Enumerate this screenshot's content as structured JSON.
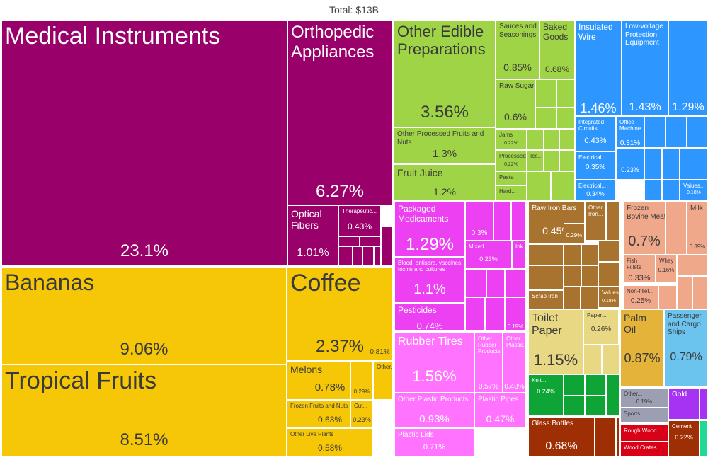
{
  "chart_data": {
    "type": "treemap",
    "title": "Total: $13B",
    "sector_colors": {
      "instruments": "#990069",
      "vegetables": "#F5C707",
      "foodstuffs": "#A0D447",
      "machines": "#2E97FF",
      "chemicals": "#ED40F2",
      "plastics": "#FF73FF",
      "metals": "#A8732E",
      "paper": "#E8D883",
      "textiles": "#0FA436",
      "animal_products": "#F0A88A",
      "transportation": "#6BC4EE",
      "animal_fats": "#E4B339",
      "misc": "#9C9FB1",
      "precious": "#A632F2",
      "wood": "#D80117",
      "stone": "#9E2F05",
      "footwear": "#1FD994"
    },
    "tiles": [
      {
        "label": "Medical Instruments",
        "value": "23.1%",
        "sector": "instruments"
      },
      {
        "label": "Orthopedic Appliances",
        "value": "6.27%",
        "sector": "instruments"
      },
      {
        "label": "Optical Fibers",
        "value": "1.01%",
        "sector": "instruments"
      },
      {
        "label": "Therapeutic...",
        "value": "0.43%",
        "sector": "instruments"
      },
      {
        "label": "Bananas",
        "value": "9.06%",
        "sector": "vegetables"
      },
      {
        "label": "Tropical Fruits",
        "value": "8.51%",
        "sector": "vegetables"
      },
      {
        "label": "Coffee",
        "value": "2.37%",
        "sector": "vegetables"
      },
      {
        "label": "Melons",
        "value": "0.78%",
        "sector": "vegetables"
      },
      {
        "label": "Frozen Fruits and Nuts",
        "value": "0.63%",
        "sector": "vegetables"
      },
      {
        "label": "Other Live Plants",
        "value": "0.58%",
        "sector": "vegetables"
      },
      {
        "label": "",
        "value": "0.81%",
        "sector": "vegetables"
      },
      {
        "label": "Other...",
        "value": "",
        "sector": "vegetables"
      },
      {
        "label": "",
        "value": "0.29%",
        "sector": "vegetables"
      },
      {
        "label": "Cut...",
        "value": "0.23%",
        "sector": "vegetables"
      },
      {
        "label": "Other Edible Preparations",
        "value": "3.56%",
        "sector": "foodstuffs"
      },
      {
        "label": "Sauces and Seasonings",
        "value": "0.85%",
        "sector": "foodstuffs"
      },
      {
        "label": "Baked Goods",
        "value": "0.68%",
        "sector": "foodstuffs"
      },
      {
        "label": "Raw Sugar",
        "value": "0.6%",
        "sector": "foodstuffs"
      },
      {
        "label": "Other Processed Fruits and Nuts",
        "value": "1.3%",
        "sector": "foodstuffs"
      },
      {
        "label": "Fruit Juice",
        "value": "1.2%",
        "sector": "foodstuffs"
      },
      {
        "label": "Jams",
        "value": "0.22%",
        "sector": "foodstuffs"
      },
      {
        "label": "Processed...",
        "value": "0.22%",
        "sector": "foodstuffs"
      },
      {
        "label": "Ice...",
        "value": "",
        "sector": "foodstuffs"
      },
      {
        "label": "Pasta",
        "value": "",
        "sector": "foodstuffs"
      },
      {
        "label": "Hard...",
        "value": "",
        "sector": "foodstuffs"
      },
      {
        "label": "Insulated Wire",
        "value": "1.46%",
        "sector": "machines"
      },
      {
        "label": "Low-voltage Protection Equipment",
        "value": "1.43%",
        "sector": "machines"
      },
      {
        "label": "",
        "value": "1.29%",
        "sector": "machines"
      },
      {
        "label": "Integrated Circuits",
        "value": "0.43%",
        "sector": "machines"
      },
      {
        "label": "Office Machine...",
        "value": "0.31%",
        "sector": "machines"
      },
      {
        "label": "Electrical...",
        "value": "0.35%",
        "sector": "machines"
      },
      {
        "label": "",
        "value": "0.23%",
        "sector": "machines"
      },
      {
        "label": "Electrical...",
        "value": "0.34%",
        "sector": "machines"
      },
      {
        "label": "Values...",
        "value": "0.18%",
        "sector": "machines"
      },
      {
        "label": "Packaged Medicaments",
        "value": "1.29%",
        "sector": "chemicals"
      },
      {
        "label": "Blood, antisera, vaccines, toxins and cultures",
        "value": "1.1%",
        "sector": "chemicals"
      },
      {
        "label": "Pesticides",
        "value": "0.74%",
        "sector": "chemicals"
      },
      {
        "label": "",
        "value": "0.3%",
        "sector": "chemicals"
      },
      {
        "label": "Mixed...",
        "value": "0.23%",
        "sector": "chemicals"
      },
      {
        "label": "Ink",
        "value": "",
        "sector": "chemicals"
      },
      {
        "label": "",
        "value": "0.19%",
        "sector": "chemicals"
      },
      {
        "label": "Rubber Tires",
        "value": "1.56%",
        "sector": "plastics"
      },
      {
        "label": "Other Rubber Products",
        "value": "0.57%",
        "sector": "plastics"
      },
      {
        "label": "Other Plastic...",
        "value": "0.48%",
        "sector": "plastics"
      },
      {
        "label": "Other Plastic Products",
        "value": "0.93%",
        "sector": "plastics"
      },
      {
        "label": "Plastic Pipes",
        "value": "0.47%",
        "sector": "plastics"
      },
      {
        "label": "Plastic Lids",
        "value": "0.71%",
        "sector": "plastics"
      },
      {
        "label": "Raw Iron Bars",
        "value": "0.45%",
        "sector": "metals"
      },
      {
        "label": "",
        "value": "0.29%",
        "sector": "metals"
      },
      {
        "label": "Other Iron...",
        "value": "",
        "sector": "metals"
      },
      {
        "label": "Scrap Iron",
        "value": "",
        "sector": "metals"
      },
      {
        "label": "Values...",
        "value": "0.18%",
        "sector": "metals"
      },
      {
        "label": "Toilet Paper",
        "value": "1.15%",
        "sector": "paper"
      },
      {
        "label": "Paper...",
        "value": "0.26%",
        "sector": "paper"
      },
      {
        "label": "Knit...",
        "value": "0.24%",
        "sector": "textiles"
      },
      {
        "label": "Frozen Bovine Meat",
        "value": "0.7%",
        "sector": "animal_products"
      },
      {
        "label": "Milk",
        "value": "0.39%",
        "sector": "animal_products"
      },
      {
        "label": "Fish Fillets",
        "value": "0.33%",
        "sector": "animal_products"
      },
      {
        "label": "Whey",
        "value": "0.16%",
        "sector": "animal_products"
      },
      {
        "label": "Non-fillet...",
        "value": "0.25%",
        "sector": "animal_products"
      },
      {
        "label": "Palm Oil",
        "value": "0.87%",
        "sector": "animal_fats"
      },
      {
        "label": "Passenger and Cargo Ships",
        "value": "0.79%",
        "sector": "transportation"
      },
      {
        "label": "Glass Bottles",
        "value": "0.68%",
        "sector": "stone"
      },
      {
        "label": "Other...",
        "value": "0.19%",
        "sector": "misc"
      },
      {
        "label": "Sports...",
        "value": "",
        "sector": "misc"
      },
      {
        "label": "Gold",
        "value": "",
        "sector": "precious"
      },
      {
        "label": "Rough Wood",
        "value": "",
        "sector": "wood"
      },
      {
        "label": "Wood Crates",
        "value": "",
        "sector": "wood"
      },
      {
        "label": "Cement",
        "value": "0.22%",
        "sector": "stone"
      }
    ]
  }
}
